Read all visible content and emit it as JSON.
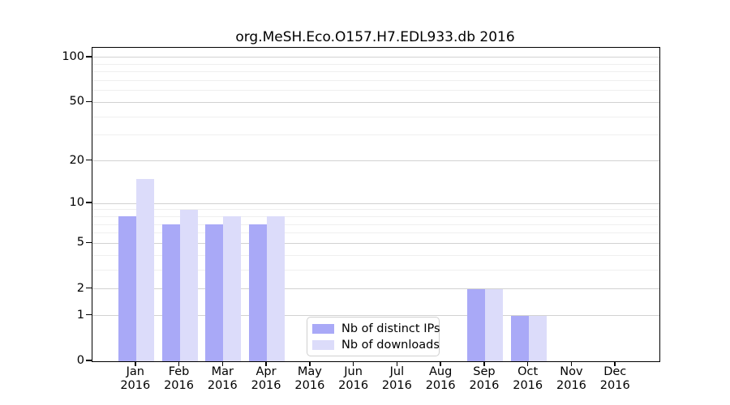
{
  "chart_data": {
    "type": "bar",
    "title": "org.MeSH.Eco.O157.H7.EDL933.db 2016",
    "categories": [
      "Jan",
      "Feb",
      "Mar",
      "Apr",
      "May",
      "Jun",
      "Jul",
      "Aug",
      "Sep",
      "Oct",
      "Nov",
      "Dec"
    ],
    "category_year": "2016",
    "series": [
      {
        "name": "Nb of distinct IPs",
        "color": "#a9a9f7",
        "values": [
          8,
          7,
          7,
          7,
          0,
          0,
          0,
          0,
          2,
          1,
          0,
          0
        ]
      },
      {
        "name": "Nb of downloads",
        "color": "#dcdcfa",
        "values": [
          15,
          9,
          8,
          8,
          0,
          0,
          0,
          0,
          2,
          1,
          0,
          0
        ]
      }
    ],
    "yscale": "log1p",
    "yticks": [
      0,
      1,
      2,
      5,
      10,
      20,
      50,
      100
    ],
    "minor_yticks": [
      3,
      4,
      6,
      7,
      8,
      9,
      30,
      40,
      60,
      70,
      80,
      90
    ],
    "ylim": [
      0,
      116
    ],
    "xlabel": "",
    "ylabel": "",
    "grid": true,
    "legend_position": "inside-bottom-center"
  },
  "colors": {
    "major_grid": "#d2d2d2",
    "minor_grid": "#efefef",
    "spine": "#000000",
    "background": "#ffffff"
  }
}
